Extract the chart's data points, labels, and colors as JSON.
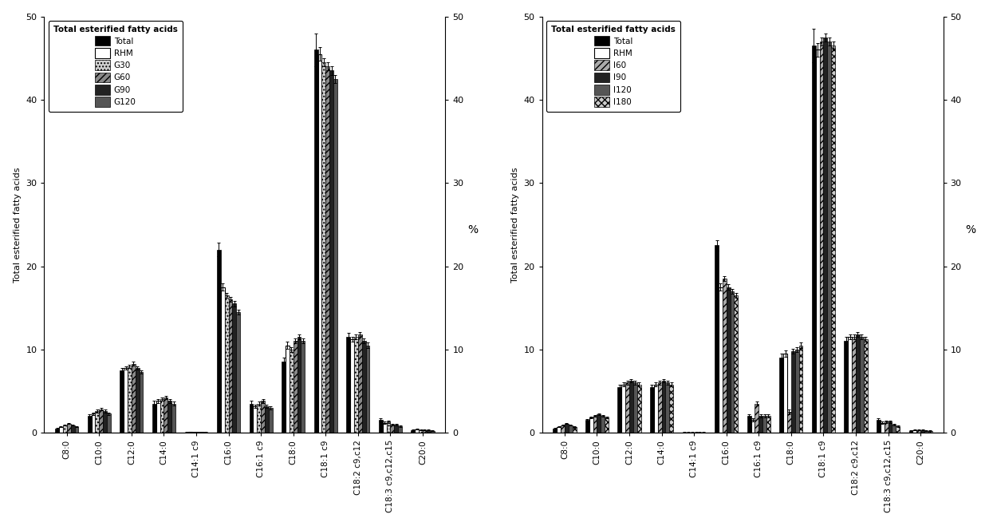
{
  "categories": [
    "C8:0",
    "C10:0",
    "C12:0",
    "C14:0",
    "C14:1 c9",
    "C16:0",
    "C16:1 c9",
    "C18:0",
    "C18:1 c9",
    "C18:2 c9,c12",
    "C18:3 c9,c12,c15",
    "C20:0"
  ],
  "ylabel_left": "Total esterified fatty acids",
  "ylabel_right": "%",
  "left_series_names": [
    "Total",
    "RHM",
    "G30",
    "G60",
    "G90",
    "G120"
  ],
  "left_data": {
    "Total": [
      0.5,
      2.0,
      7.5,
      3.5,
      0.05,
      22.0,
      3.5,
      8.5,
      46.0,
      11.5,
      1.5,
      0.3
    ],
    "RHM": [
      0.7,
      2.3,
      7.8,
      3.8,
      0.1,
      17.5,
      3.2,
      10.5,
      45.5,
      11.2,
      1.2,
      0.4
    ],
    "G30": [
      0.9,
      2.6,
      8.0,
      4.0,
      0.1,
      16.5,
      3.5,
      10.0,
      44.5,
      11.5,
      1.3,
      0.3
    ],
    "G60": [
      1.1,
      2.8,
      8.3,
      4.2,
      0.1,
      16.0,
      3.8,
      11.0,
      44.0,
      11.8,
      1.0,
      0.3
    ],
    "G90": [
      0.9,
      2.6,
      7.8,
      3.8,
      0.1,
      15.5,
      3.2,
      11.5,
      43.5,
      11.0,
      1.0,
      0.3
    ],
    "G120": [
      0.7,
      2.3,
      7.3,
      3.5,
      0.05,
      14.5,
      3.0,
      11.0,
      42.5,
      10.5,
      0.8,
      0.2
    ]
  },
  "left_errors": {
    "Total": [
      0.1,
      0.2,
      0.3,
      0.3,
      0.02,
      0.8,
      0.3,
      0.5,
      2.0,
      0.5,
      0.2,
      0.05
    ],
    "RHM": [
      0.05,
      0.15,
      0.2,
      0.2,
      0.02,
      0.4,
      0.2,
      0.4,
      0.8,
      0.3,
      0.1,
      0.05
    ],
    "G30": [
      0.05,
      0.15,
      0.2,
      0.2,
      0.02,
      0.3,
      0.2,
      0.3,
      0.5,
      0.3,
      0.1,
      0.05
    ],
    "G60": [
      0.05,
      0.15,
      0.2,
      0.2,
      0.02,
      0.3,
      0.2,
      0.3,
      0.5,
      0.3,
      0.1,
      0.05
    ],
    "G90": [
      0.05,
      0.15,
      0.2,
      0.2,
      0.02,
      0.3,
      0.2,
      0.3,
      0.5,
      0.3,
      0.1,
      0.05
    ],
    "G120": [
      0.05,
      0.15,
      0.2,
      0.2,
      0.02,
      0.3,
      0.2,
      0.3,
      0.5,
      0.3,
      0.1,
      0.05
    ]
  },
  "right_series_names": [
    "Total",
    "RHM",
    "I60",
    "I90",
    "I120",
    "I180"
  ],
  "right_data": {
    "Total": [
      0.5,
      1.5,
      5.5,
      5.5,
      0.05,
      22.5,
      2.0,
      9.0,
      46.5,
      11.0,
      1.5,
      0.2
    ],
    "RHM": [
      0.7,
      1.8,
      5.8,
      5.8,
      0.05,
      17.5,
      1.5,
      9.5,
      46.0,
      11.5,
      1.2,
      0.3
    ],
    "I60": [
      0.9,
      2.0,
      6.0,
      6.0,
      0.05,
      18.5,
      3.5,
      2.5,
      47.0,
      11.5,
      1.3,
      0.3
    ],
    "I90": [
      1.1,
      2.2,
      6.2,
      6.2,
      0.05,
      17.5,
      2.0,
      9.8,
      47.5,
      11.8,
      1.3,
      0.3
    ],
    "I120": [
      0.9,
      2.0,
      6.0,
      6.0,
      0.05,
      17.0,
      2.0,
      10.0,
      47.0,
      11.5,
      1.0,
      0.2
    ],
    "I180": [
      0.7,
      1.8,
      5.8,
      5.8,
      0.05,
      16.5,
      2.0,
      10.5,
      46.5,
      11.2,
      0.8,
      0.2
    ]
  },
  "right_errors": {
    "Total": [
      0.1,
      0.15,
      0.3,
      0.3,
      0.02,
      0.6,
      0.2,
      0.5,
      2.0,
      0.5,
      0.2,
      0.05
    ],
    "RHM": [
      0.05,
      0.1,
      0.2,
      0.2,
      0.02,
      0.4,
      0.2,
      0.4,
      0.8,
      0.3,
      0.1,
      0.05
    ],
    "I60": [
      0.05,
      0.1,
      0.2,
      0.2,
      0.02,
      0.3,
      0.2,
      0.3,
      0.5,
      0.3,
      0.1,
      0.05
    ],
    "I90": [
      0.05,
      0.1,
      0.2,
      0.2,
      0.02,
      0.3,
      0.2,
      0.3,
      0.5,
      0.3,
      0.1,
      0.05
    ],
    "I120": [
      0.05,
      0.1,
      0.2,
      0.2,
      0.02,
      0.3,
      0.2,
      0.3,
      0.5,
      0.3,
      0.1,
      0.05
    ],
    "I180": [
      0.05,
      0.1,
      0.2,
      0.2,
      0.02,
      0.3,
      0.2,
      0.3,
      0.5,
      0.3,
      0.1,
      0.05
    ]
  },
  "ylim": [
    0,
    50
  ],
  "yticks": [
    0,
    10,
    20,
    30,
    40,
    50
  ],
  "background_color": "#ffffff",
  "bar_width": 0.12
}
